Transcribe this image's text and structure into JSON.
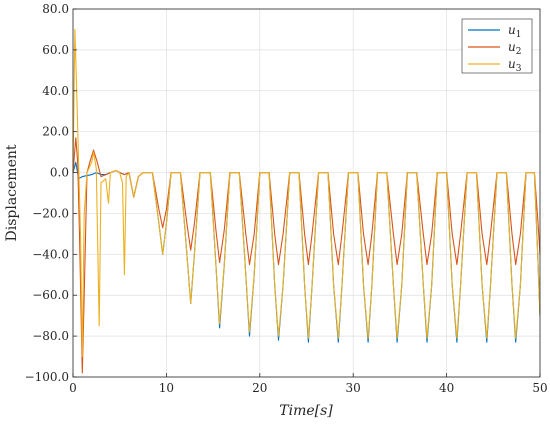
{
  "chart_data": {
    "type": "line",
    "xlabel": "Time[s]",
    "ylabel": "Displacement",
    "xlim": [
      0,
      50
    ],
    "ylim": [
      -100,
      80
    ],
    "x_ticks": [
      "0",
      "10",
      "20",
      "30",
      "40",
      "50"
    ],
    "y_ticks": [
      "80.0",
      "60.0",
      "40.0",
      "20.0",
      "0.0",
      "−20.0",
      "−40.0",
      "−60.0",
      "−80.0",
      "−100.0"
    ],
    "grid": true,
    "legend": "top-right",
    "series": [
      {
        "name": "u1",
        "color": "#0072BD",
        "values": [
          [
            0,
            0
          ],
          [
            0.3,
            5
          ],
          [
            0.6,
            -3
          ],
          [
            1.0,
            -2
          ],
          [
            1.5,
            -1.5
          ],
          [
            2.0,
            -1
          ],
          [
            2.5,
            0
          ],
          [
            3.0,
            -1
          ],
          [
            3.5,
            -1
          ],
          [
            4.0,
            0
          ],
          [
            4.6,
            1
          ],
          [
            5.0,
            0
          ],
          [
            5.5,
            -1
          ],
          [
            6.0,
            0
          ],
          [
            6.5,
            -12
          ],
          [
            7.0,
            -2
          ],
          [
            7.5,
            0
          ],
          [
            8.5,
            0
          ],
          [
            9.2,
            -25
          ],
          [
            9.6,
            -40
          ],
          [
            10.0,
            -25
          ],
          [
            10.5,
            0
          ],
          [
            11.5,
            0
          ],
          [
            12.2,
            -40
          ],
          [
            12.6,
            -64
          ],
          [
            13.0,
            -40
          ],
          [
            13.6,
            0
          ],
          [
            14.7,
            0
          ],
          [
            15.3,
            -45
          ],
          [
            15.7,
            -76
          ],
          [
            16.2,
            -45
          ],
          [
            16.8,
            0
          ],
          [
            17.8,
            0
          ],
          [
            18.5,
            -50
          ],
          [
            18.9,
            -80
          ],
          [
            19.4,
            -50
          ],
          [
            20.0,
            0
          ],
          [
            21.0,
            0
          ],
          [
            21.6,
            -55
          ],
          [
            22.0,
            -82
          ],
          [
            22.5,
            -55
          ],
          [
            23.2,
            0
          ],
          [
            24.2,
            0
          ],
          [
            24.8,
            -55
          ],
          [
            25.2,
            -83
          ],
          [
            25.6,
            -55
          ],
          [
            26.3,
            0
          ],
          [
            27.3,
            0
          ],
          [
            27.9,
            -55
          ],
          [
            28.4,
            -83
          ],
          [
            28.8,
            -55
          ],
          [
            29.5,
            0
          ],
          [
            30.5,
            0
          ],
          [
            31.1,
            -55
          ],
          [
            31.6,
            -83
          ],
          [
            32.0,
            -55
          ],
          [
            32.6,
            0
          ],
          [
            33.6,
            0
          ],
          [
            34.3,
            -55
          ],
          [
            34.7,
            -83
          ],
          [
            35.2,
            -55
          ],
          [
            35.8,
            0
          ],
          [
            36.8,
            0
          ],
          [
            37.5,
            -55
          ],
          [
            37.9,
            -83
          ],
          [
            38.4,
            -55
          ],
          [
            39.0,
            0
          ],
          [
            40.0,
            0
          ],
          [
            40.6,
            -55
          ],
          [
            41.1,
            -83
          ],
          [
            41.5,
            -55
          ],
          [
            42.2,
            0
          ],
          [
            43.2,
            0
          ],
          [
            43.8,
            -55
          ],
          [
            44.3,
            -83
          ],
          [
            44.7,
            -55
          ],
          [
            45.4,
            0
          ],
          [
            46.4,
            0
          ],
          [
            47.0,
            -55
          ],
          [
            47.4,
            -83
          ],
          [
            47.9,
            -55
          ],
          [
            48.5,
            0
          ],
          [
            49.4,
            0
          ],
          [
            49.8,
            -45
          ],
          [
            50.0,
            -70
          ]
        ]
      },
      {
        "name": "u2",
        "color": "#D95319",
        "values": [
          [
            0,
            0
          ],
          [
            0.3,
            17
          ],
          [
            0.5,
            5
          ],
          [
            0.7,
            -30
          ],
          [
            1.0,
            -98
          ],
          [
            1.2,
            -60
          ],
          [
            1.5,
            0
          ],
          [
            1.8,
            5
          ],
          [
            2.2,
            11
          ],
          [
            2.6,
            5
          ],
          [
            3.0,
            -2
          ],
          [
            3.5,
            -1
          ],
          [
            4.0,
            0
          ],
          [
            4.6,
            1
          ],
          [
            5.0,
            0
          ],
          [
            5.5,
            -1
          ],
          [
            6.0,
            0
          ],
          [
            6.5,
            -12
          ],
          [
            7.0,
            -2
          ],
          [
            7.5,
            0
          ],
          [
            8.5,
            0
          ],
          [
            9.2,
            -18
          ],
          [
            9.6,
            -27
          ],
          [
            10.0,
            -18
          ],
          [
            10.5,
            0
          ],
          [
            11.5,
            0
          ],
          [
            12.2,
            -25
          ],
          [
            12.6,
            -38
          ],
          [
            13.0,
            -25
          ],
          [
            13.6,
            0
          ],
          [
            14.7,
            0
          ],
          [
            15.3,
            -28
          ],
          [
            15.7,
            -44
          ],
          [
            16.2,
            -28
          ],
          [
            16.8,
            0
          ],
          [
            17.8,
            0
          ],
          [
            18.5,
            -30
          ],
          [
            18.9,
            -45
          ],
          [
            19.4,
            -30
          ],
          [
            20.0,
            0
          ],
          [
            21.0,
            0
          ],
          [
            21.6,
            -30
          ],
          [
            22.0,
            -45
          ],
          [
            22.5,
            -30
          ],
          [
            23.2,
            0
          ],
          [
            24.2,
            0
          ],
          [
            24.8,
            -30
          ],
          [
            25.2,
            -45
          ],
          [
            25.6,
            -30
          ],
          [
            26.3,
            0
          ],
          [
            27.3,
            0
          ],
          [
            27.9,
            -30
          ],
          [
            28.4,
            -45
          ],
          [
            28.8,
            -30
          ],
          [
            29.5,
            0
          ],
          [
            30.5,
            0
          ],
          [
            31.1,
            -30
          ],
          [
            31.6,
            -45
          ],
          [
            32.0,
            -30
          ],
          [
            32.6,
            0
          ],
          [
            33.6,
            0
          ],
          [
            34.3,
            -30
          ],
          [
            34.7,
            -45
          ],
          [
            35.2,
            -30
          ],
          [
            35.8,
            0
          ],
          [
            36.8,
            0
          ],
          [
            37.5,
            -30
          ],
          [
            37.9,
            -45
          ],
          [
            38.4,
            -30
          ],
          [
            39.0,
            0
          ],
          [
            40.0,
            0
          ],
          [
            40.6,
            -30
          ],
          [
            41.1,
            -45
          ],
          [
            41.5,
            -30
          ],
          [
            42.2,
            0
          ],
          [
            43.2,
            0
          ],
          [
            43.8,
            -30
          ],
          [
            44.3,
            -45
          ],
          [
            44.7,
            -30
          ],
          [
            45.4,
            0
          ],
          [
            46.4,
            0
          ],
          [
            47.0,
            -30
          ],
          [
            47.4,
            -45
          ],
          [
            47.9,
            -30
          ],
          [
            48.5,
            0
          ],
          [
            49.4,
            0
          ],
          [
            49.8,
            -25
          ],
          [
            50.0,
            -40
          ]
        ]
      },
      {
        "name": "u3",
        "color": "#EDB120",
        "values": [
          [
            0,
            0
          ],
          [
            0.2,
            70
          ],
          [
            0.4,
            40
          ],
          [
            0.6,
            5
          ],
          [
            0.8,
            -30
          ],
          [
            1.0,
            -90
          ],
          [
            1.2,
            -20
          ],
          [
            1.5,
            0
          ],
          [
            2.0,
            5
          ],
          [
            2.2,
            10
          ],
          [
            2.5,
            2
          ],
          [
            2.8,
            -75
          ],
          [
            3.0,
            -5
          ],
          [
            3.5,
            -3
          ],
          [
            3.8,
            -15
          ],
          [
            4.0,
            0
          ],
          [
            4.6,
            1
          ],
          [
            5.0,
            0
          ],
          [
            5.3,
            -5
          ],
          [
            5.5,
            -50
          ],
          [
            5.7,
            -2
          ],
          [
            6.0,
            0
          ],
          [
            6.5,
            -12
          ],
          [
            7.0,
            -2
          ],
          [
            7.5,
            0
          ],
          [
            8.5,
            0
          ],
          [
            9.2,
            -25
          ],
          [
            9.6,
            -40
          ],
          [
            10.0,
            -25
          ],
          [
            10.5,
            0
          ],
          [
            11.5,
            0
          ],
          [
            12.2,
            -40
          ],
          [
            12.6,
            -64
          ],
          [
            13.0,
            -40
          ],
          [
            13.6,
            0
          ],
          [
            14.7,
            0
          ],
          [
            15.3,
            -45
          ],
          [
            15.7,
            -74
          ],
          [
            16.2,
            -45
          ],
          [
            16.8,
            0
          ],
          [
            17.8,
            0
          ],
          [
            18.5,
            -50
          ],
          [
            18.9,
            -78
          ],
          [
            19.4,
            -50
          ],
          [
            20.0,
            0
          ],
          [
            21.0,
            0
          ],
          [
            21.6,
            -55
          ],
          [
            22.0,
            -80
          ],
          [
            22.5,
            -55
          ],
          [
            23.2,
            0
          ],
          [
            24.2,
            0
          ],
          [
            24.8,
            -55
          ],
          [
            25.2,
            -81
          ],
          [
            25.6,
            -55
          ],
          [
            26.3,
            0
          ],
          [
            27.3,
            0
          ],
          [
            27.9,
            -55
          ],
          [
            28.4,
            -81
          ],
          [
            28.8,
            -55
          ],
          [
            29.5,
            0
          ],
          [
            30.5,
            0
          ],
          [
            31.1,
            -55
          ],
          [
            31.6,
            -81
          ],
          [
            32.0,
            -55
          ],
          [
            32.6,
            0
          ],
          [
            33.6,
            0
          ],
          [
            34.3,
            -55
          ],
          [
            34.7,
            -81
          ],
          [
            35.2,
            -55
          ],
          [
            35.8,
            0
          ],
          [
            36.8,
            0
          ],
          [
            37.5,
            -55
          ],
          [
            37.9,
            -81
          ],
          [
            38.4,
            -55
          ],
          [
            39.0,
            0
          ],
          [
            40.0,
            0
          ],
          [
            40.6,
            -55
          ],
          [
            41.1,
            -81
          ],
          [
            41.5,
            -55
          ],
          [
            42.2,
            0
          ],
          [
            43.2,
            0
          ],
          [
            43.8,
            -55
          ],
          [
            44.3,
            -81
          ],
          [
            44.7,
            -55
          ],
          [
            45.4,
            0
          ],
          [
            46.4,
            0
          ],
          [
            47.0,
            -55
          ],
          [
            47.4,
            -81
          ],
          [
            47.9,
            -55
          ],
          [
            48.5,
            0
          ],
          [
            49.4,
            0
          ],
          [
            49.8,
            -45
          ],
          [
            50.0,
            -70
          ]
        ]
      }
    ]
  }
}
